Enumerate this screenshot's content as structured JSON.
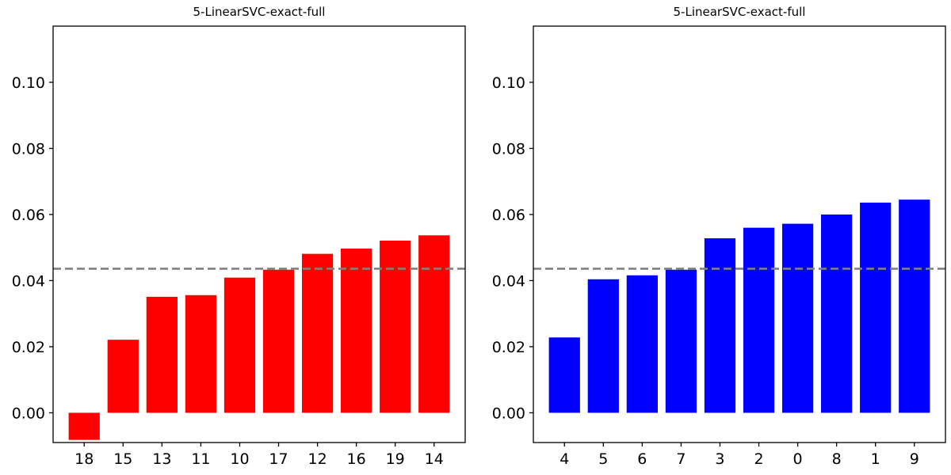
{
  "chart_data": [
    {
      "type": "bar",
      "title": "5-LinearSVC-exact-full",
      "categories": [
        "18",
        "15",
        "13",
        "11",
        "10",
        "17",
        "12",
        "16",
        "19",
        "14"
      ],
      "values": [
        -0.0082,
        0.0221,
        0.0351,
        0.0356,
        0.0409,
        0.0433,
        0.0481,
        0.0497,
        0.0521,
        0.0537
      ],
      "color": "#ff0000",
      "ylim": [
        -0.009,
        0.117
      ],
      "yticks": [
        0.0,
        0.02,
        0.04,
        0.06,
        0.08,
        0.1
      ],
      "ytick_labels": [
        "0.00",
        "0.02",
        "0.04",
        "0.06",
        "0.08",
        "0.10"
      ],
      "reference_line": {
        "y": 0.0436,
        "color": "#808080",
        "style": "dashed"
      },
      "grid": false
    },
    {
      "type": "bar",
      "title": "5-LinearSVC-exact-full",
      "categories": [
        "4",
        "5",
        "6",
        "7",
        "3",
        "2",
        "0",
        "8",
        "1",
        "9"
      ],
      "values": [
        0.0228,
        0.0404,
        0.0416,
        0.0433,
        0.0528,
        0.056,
        0.0572,
        0.06,
        0.0636,
        0.0645
      ],
      "color": "#0000ff",
      "ylim": [
        -0.009,
        0.117
      ],
      "yticks": [
        0.0,
        0.02,
        0.04,
        0.06,
        0.08,
        0.1
      ],
      "ytick_labels": [
        "0.00",
        "0.02",
        "0.04",
        "0.06",
        "0.08",
        "0.10"
      ],
      "reference_line": {
        "y": 0.0436,
        "color": "#808080",
        "style": "dashed"
      },
      "grid": false
    }
  ]
}
